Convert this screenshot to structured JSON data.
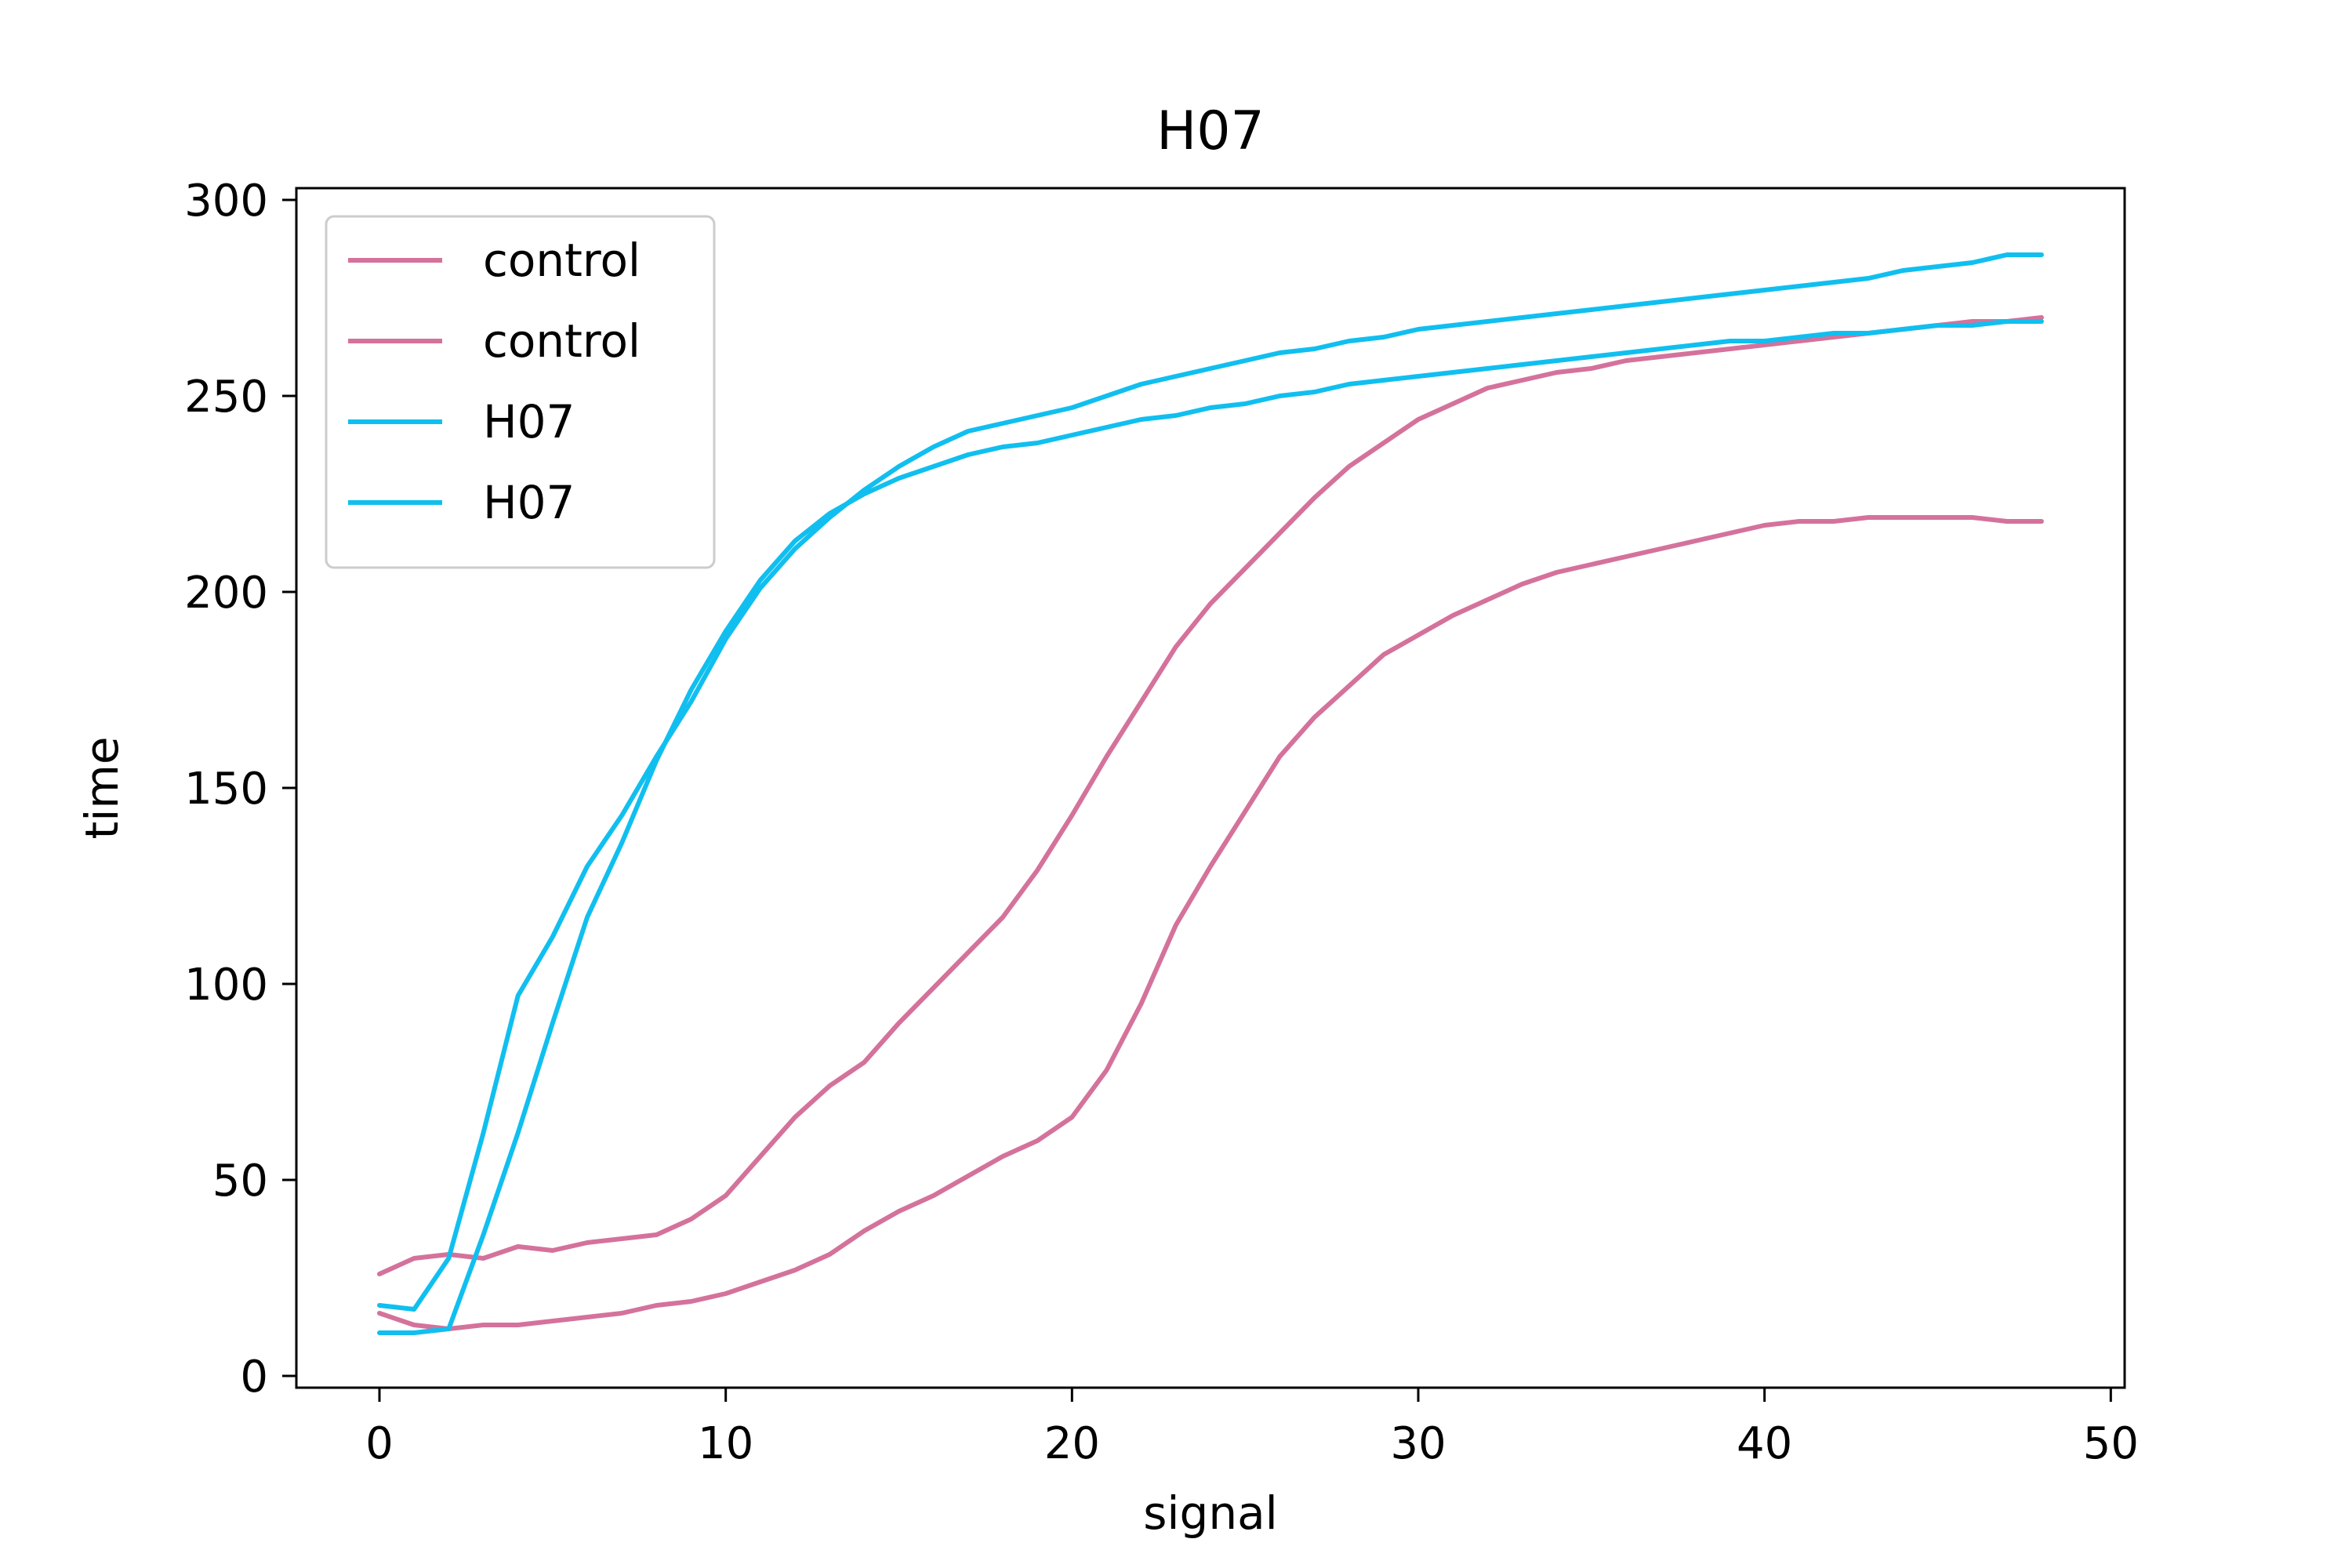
{
  "chart_data": {
    "type": "line",
    "title": "H07",
    "xlabel": "signal",
    "ylabel": "time",
    "xlim": [
      -2.4,
      50.4
    ],
    "ylim": [
      -3,
      303
    ],
    "xticks": [
      0,
      10,
      20,
      30,
      40,
      50
    ],
    "yticks": [
      0,
      50,
      100,
      150,
      200,
      250,
      300
    ],
    "grid": false,
    "legend_position": "top-left",
    "series": [
      {
        "name": "control",
        "color": "#d4729c",
        "points": [
          [
            0,
            26
          ],
          [
            1,
            30
          ],
          [
            2,
            31
          ],
          [
            3,
            30
          ],
          [
            4,
            33
          ],
          [
            5,
            32
          ],
          [
            6,
            34
          ],
          [
            7,
            35
          ],
          [
            8,
            36
          ],
          [
            9,
            40
          ],
          [
            10,
            46
          ],
          [
            11,
            56
          ],
          [
            12,
            66
          ],
          [
            13,
            74
          ],
          [
            14,
            80
          ],
          [
            15,
            90
          ],
          [
            16,
            99
          ],
          [
            17,
            108
          ],
          [
            18,
            117
          ],
          [
            19,
            129
          ],
          [
            20,
            143
          ],
          [
            21,
            158
          ],
          [
            22,
            172
          ],
          [
            23,
            186
          ],
          [
            24,
            197
          ],
          [
            25,
            206
          ],
          [
            26,
            215
          ],
          [
            27,
            224
          ],
          [
            28,
            232
          ],
          [
            29,
            238
          ],
          [
            30,
            244
          ],
          [
            31,
            248
          ],
          [
            32,
            252
          ],
          [
            33,
            254
          ],
          [
            34,
            256
          ],
          [
            35,
            257
          ],
          [
            36,
            259
          ],
          [
            37,
            260
          ],
          [
            38,
            261
          ],
          [
            39,
            262
          ],
          [
            40,
            263
          ],
          [
            41,
            264
          ],
          [
            42,
            265
          ],
          [
            43,
            266
          ],
          [
            44,
            267
          ],
          [
            45,
            268
          ],
          [
            46,
            269
          ],
          [
            47,
            269
          ],
          [
            48,
            270
          ]
        ]
      },
      {
        "name": "control",
        "color": "#d4729c",
        "points": [
          [
            0,
            16
          ],
          [
            1,
            13
          ],
          [
            2,
            12
          ],
          [
            3,
            13
          ],
          [
            4,
            13
          ],
          [
            5,
            14
          ],
          [
            6,
            15
          ],
          [
            7,
            16
          ],
          [
            8,
            18
          ],
          [
            9,
            19
          ],
          [
            10,
            21
          ],
          [
            11,
            24
          ],
          [
            12,
            27
          ],
          [
            13,
            31
          ],
          [
            14,
            37
          ],
          [
            15,
            42
          ],
          [
            16,
            46
          ],
          [
            17,
            51
          ],
          [
            18,
            56
          ],
          [
            19,
            60
          ],
          [
            20,
            66
          ],
          [
            21,
            78
          ],
          [
            22,
            95
          ],
          [
            23,
            115
          ],
          [
            24,
            130
          ],
          [
            25,
            144
          ],
          [
            26,
            158
          ],
          [
            27,
            168
          ],
          [
            28,
            176
          ],
          [
            29,
            184
          ],
          [
            30,
            189
          ],
          [
            31,
            194
          ],
          [
            32,
            198
          ],
          [
            33,
            202
          ],
          [
            34,
            205
          ],
          [
            35,
            207
          ],
          [
            36,
            209
          ],
          [
            37,
            211
          ],
          [
            38,
            213
          ],
          [
            39,
            215
          ],
          [
            40,
            217
          ],
          [
            41,
            218
          ],
          [
            42,
            218
          ],
          [
            43,
            219
          ],
          [
            44,
            219
          ],
          [
            45,
            219
          ],
          [
            46,
            219
          ],
          [
            47,
            218
          ],
          [
            48,
            218
          ]
        ]
      },
      {
        "name": "H07",
        "color": "#10bfef",
        "points": [
          [
            0,
            18
          ],
          [
            1,
            17
          ],
          [
            2,
            30
          ],
          [
            3,
            62
          ],
          [
            4,
            97
          ],
          [
            5,
            112
          ],
          [
            6,
            130
          ],
          [
            7,
            143
          ],
          [
            8,
            158
          ],
          [
            9,
            172
          ],
          [
            10,
            188
          ],
          [
            11,
            201
          ],
          [
            12,
            211
          ],
          [
            13,
            219
          ],
          [
            14,
            226
          ],
          [
            15,
            232
          ],
          [
            16,
            237
          ],
          [
            17,
            241
          ],
          [
            18,
            243
          ],
          [
            19,
            245
          ],
          [
            20,
            247
          ],
          [
            21,
            250
          ],
          [
            22,
            253
          ],
          [
            23,
            255
          ],
          [
            24,
            257
          ],
          [
            25,
            259
          ],
          [
            26,
            261
          ],
          [
            27,
            262
          ],
          [
            28,
            264
          ],
          [
            29,
            265
          ],
          [
            30,
            267
          ],
          [
            31,
            268
          ],
          [
            32,
            269
          ],
          [
            33,
            270
          ],
          [
            34,
            271
          ],
          [
            35,
            272
          ],
          [
            36,
            273
          ],
          [
            37,
            274
          ],
          [
            38,
            275
          ],
          [
            39,
            276
          ],
          [
            40,
            277
          ],
          [
            41,
            278
          ],
          [
            42,
            279
          ],
          [
            43,
            280
          ],
          [
            44,
            282
          ],
          [
            45,
            283
          ],
          [
            46,
            284
          ],
          [
            47,
            286
          ],
          [
            48,
            286
          ]
        ]
      },
      {
        "name": "H07",
        "color": "#10bfef",
        "points": [
          [
            0,
            11
          ],
          [
            1,
            11
          ],
          [
            2,
            12
          ],
          [
            3,
            36
          ],
          [
            4,
            62
          ],
          [
            5,
            90
          ],
          [
            6,
            117
          ],
          [
            7,
            136
          ],
          [
            8,
            157
          ],
          [
            9,
            175
          ],
          [
            10,
            190
          ],
          [
            11,
            203
          ],
          [
            12,
            213
          ],
          [
            13,
            220
          ],
          [
            14,
            225
          ],
          [
            15,
            229
          ],
          [
            16,
            232
          ],
          [
            17,
            235
          ],
          [
            18,
            237
          ],
          [
            19,
            238
          ],
          [
            20,
            240
          ],
          [
            21,
            242
          ],
          [
            22,
            244
          ],
          [
            23,
            245
          ],
          [
            24,
            247
          ],
          [
            25,
            248
          ],
          [
            26,
            250
          ],
          [
            27,
            251
          ],
          [
            28,
            253
          ],
          [
            29,
            254
          ],
          [
            30,
            255
          ],
          [
            31,
            256
          ],
          [
            32,
            257
          ],
          [
            33,
            258
          ],
          [
            34,
            259
          ],
          [
            35,
            260
          ],
          [
            36,
            261
          ],
          [
            37,
            262
          ],
          [
            38,
            263
          ],
          [
            39,
            264
          ],
          [
            40,
            264
          ],
          [
            41,
            265
          ],
          [
            42,
            266
          ],
          [
            43,
            266
          ],
          [
            44,
            267
          ],
          [
            45,
            268
          ],
          [
            46,
            268
          ],
          [
            47,
            269
          ],
          [
            48,
            269
          ]
        ]
      }
    ]
  }
}
